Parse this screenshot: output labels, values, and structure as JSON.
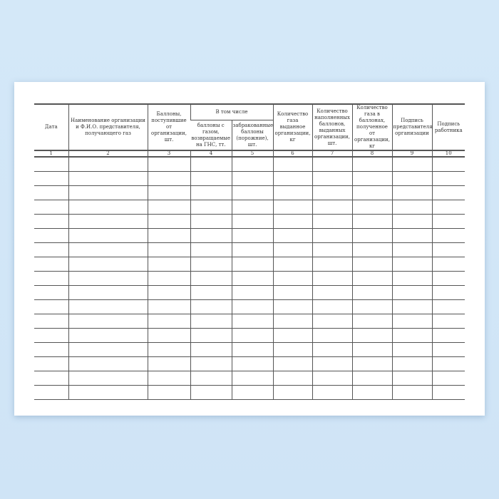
{
  "form": {
    "headers": {
      "date": "Дата",
      "org": "Наименование организации и Ф.И.О. представителя, получающего газ",
      "received": "Баллоны, поступившие от организации, шт.",
      "including": "В том числе",
      "returned": "баллоны с газом, возвращаемые на ГНС, тт.",
      "rejected": "забракованные баллоны (порожние), шт.",
      "gas_issued": "Количество газа выданное организации, кг",
      "filled_issued": "Количество наполненных баллонов, выданных организации, шт.",
      "gas_received": "Количество газа в баллонах, полученное от организации, кг",
      "sign_rep": "Подпись представителя организации",
      "sign_worker": "Подпись работника"
    },
    "column_numbers": [
      "1",
      "2",
      "3",
      "4",
      "5",
      "6",
      "7",
      "8",
      "9",
      "10"
    ],
    "empty_rows": 17
  }
}
